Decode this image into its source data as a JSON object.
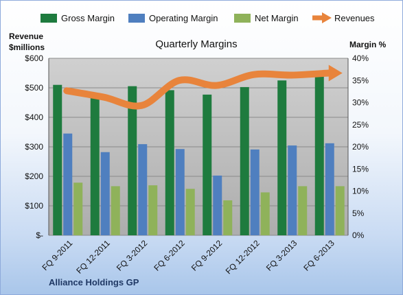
{
  "chart_data": {
    "type": "bar",
    "title": "Quarterly Margins",
    "categories": [
      "FQ 9-2011",
      "FQ 12-2011",
      "FQ 3-2012",
      "FQ 6-2012",
      "FQ 9-2012",
      "FQ 12-2012",
      "FQ 3-2013",
      "FQ 6-2013"
    ],
    "series": [
      {
        "name": "Gross Margin",
        "axis": "right",
        "color": "#1e7b3e",
        "values": [
          34.0,
          31.0,
          33.7,
          32.8,
          31.8,
          33.5,
          35.0,
          36.0
        ]
      },
      {
        "name": "Operating Margin",
        "axis": "right",
        "color": "#4f7fbf",
        "values": [
          23.0,
          18.8,
          20.6,
          19.5,
          13.5,
          19.4,
          20.3,
          20.8
        ]
      },
      {
        "name": "Net Margin",
        "axis": "right",
        "color": "#8fb25a",
        "values": [
          11.9,
          11.1,
          11.3,
          10.5,
          7.9,
          9.7,
          11.1,
          11.1
        ]
      },
      {
        "name": "Revenues",
        "axis": "left",
        "type": "line",
        "color": "#e8843c",
        "values": [
          490,
          468,
          440,
          525,
          508,
          545,
          543,
          550
        ]
      }
    ],
    "left_axis": {
      "label_line1": "Revenue",
      "label_line2": "$millions",
      "ylim": [
        0,
        600
      ],
      "ticks": [
        {
          "v": 0,
          "label": "$-"
        },
        {
          "v": 100,
          "label": "$100"
        },
        {
          "v": 200,
          "label": "$200"
        },
        {
          "v": 300,
          "label": "$300"
        },
        {
          "v": 400,
          "label": "$400"
        },
        {
          "v": 500,
          "label": "$500"
        },
        {
          "v": 600,
          "label": "$600"
        }
      ]
    },
    "right_axis": {
      "label": "Margin %",
      "ylim": [
        0,
        40
      ],
      "ticks": [
        {
          "v": 0,
          "label": "0%"
        },
        {
          "v": 5,
          "label": "5%"
        },
        {
          "v": 10,
          "label": "10%"
        },
        {
          "v": 15,
          "label": "15%"
        },
        {
          "v": 20,
          "label": "20%"
        },
        {
          "v": 25,
          "label": "25%"
        },
        {
          "v": 30,
          "label": "30%"
        },
        {
          "v": 35,
          "label": "35%"
        },
        {
          "v": 40,
          "label": "40%"
        }
      ]
    },
    "grid": true,
    "legend": "top",
    "plot_background": "#c8c8c8"
  },
  "footer": {
    "company": "Alliance Holdings GP"
  }
}
